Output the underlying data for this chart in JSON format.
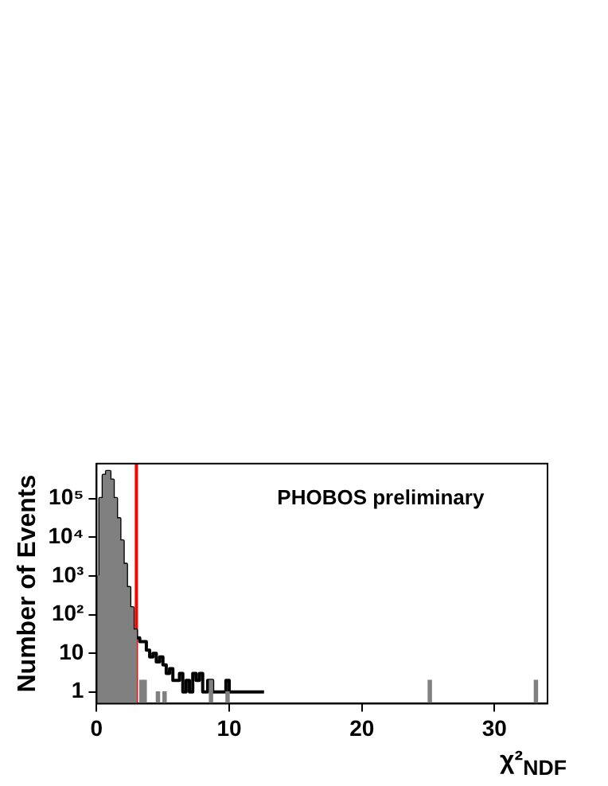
{
  "chart_data": {
    "type": "histogram",
    "ylabel": "Number of Events",
    "xlabel": "χ²$_{NDF}$",
    "annotations": [
      "PHOBOS preliminary"
    ],
    "bins": [
      0,
      0.25,
      0.5,
      0.75,
      1,
      1.25,
      1.5,
      1.75,
      2,
      2.25,
      2.5,
      2.75,
      3,
      3.25,
      3.5,
      3.75,
      4,
      4.25,
      4.5,
      4.75,
      5,
      5.25,
      5.5,
      5.75,
      6,
      6.25,
      6.5,
      6.75,
      7,
      7.25,
      7.5,
      7.75,
      8,
      8.25,
      8.5,
      8.75,
      9,
      9.25,
      9.5,
      9.75,
      10,
      10.25,
      10.5,
      10.75,
      11,
      11.25,
      11.5,
      11.75,
      12,
      12.25,
      12.5,
      12.75,
      13,
      13.25,
      13.5,
      13.75,
      14,
      14.25,
      14.5,
      14.75,
      15,
      15.25,
      15.5,
      15.75,
      16,
      16.25,
      16.5,
      16.75,
      17,
      17.25,
      17.5,
      17.75,
      18,
      18.25,
      18.5,
      18.75,
      19,
      19.25,
      19.5,
      19.75,
      20,
      20.25,
      20.5,
      20.75,
      21,
      21.25,
      21.5,
      21.75,
      22,
      22.25,
      22.5,
      22.75,
      23,
      23.25,
      23.5,
      23.75,
      24,
      24.25,
      24.5,
      24.75,
      25,
      25.25,
      25.5,
      25.75,
      26,
      26.25,
      26.5,
      26.75,
      27,
      27.25,
      27.5,
      27.75,
      28,
      28.25,
      28.5,
      28.75,
      29,
      29.25,
      29.5,
      29.75,
      30,
      30.25,
      30.5,
      30.75,
      31,
      31.25,
      31.5,
      31.75,
      32,
      32.25,
      32.5,
      32.75,
      33,
      33.25,
      33.5,
      33.75,
      34
    ],
    "series": [
      {
        "color": "#808080",
        "values": [
          1000,
          100000,
          400000,
          500000,
          300000,
          100000,
          30000,
          8000,
          2000,
          500,
          150,
          40,
          null,
          2,
          2,
          null,
          null,
          null,
          1,
          null,
          1,
          null,
          null,
          null,
          null,
          null,
          null,
          null,
          null,
          null,
          null,
          null,
          null,
          null,
          2,
          null,
          null,
          null,
          null,
          1,
          null,
          null,
          null,
          null,
          null,
          null,
          null,
          null,
          null,
          null,
          null,
          null,
          null,
          null,
          null,
          null,
          null,
          null,
          null,
          null,
          null,
          null,
          null,
          null,
          null,
          null,
          null,
          null,
          null,
          null,
          null,
          null,
          null,
          null,
          null,
          null,
          null,
          null,
          null,
          null,
          null,
          null,
          null,
          null,
          null,
          null,
          null,
          null,
          null,
          null,
          null,
          null,
          null,
          null,
          null,
          null,
          null,
          null,
          null,
          null,
          2,
          null,
          null,
          null,
          null,
          null,
          null,
          null,
          null,
          null,
          null,
          null,
          null,
          null,
          null,
          null,
          null,
          null,
          null,
          null,
          null,
          null,
          null,
          null,
          null,
          null,
          null,
          null,
          null,
          null,
          null,
          null,
          2,
          null,
          null,
          null
        ]
      },
      {
        "type": "step",
        "color": "#000000",
        "x": [
          0.125,
          0.375,
          0.625,
          0.875,
          1.125,
          1.375,
          1.625,
          1.875,
          2.125,
          2.375,
          2.625,
          2.875,
          3.125,
          3.375,
          3.625,
          3.875,
          4.125,
          4.375,
          4.625,
          4.875,
          5.125,
          5.375,
          5.625,
          5.875,
          6.125,
          6.375,
          6.625,
          6.875,
          7.125,
          7.375,
          7.625,
          7.875,
          8.125,
          8.625,
          8.875,
          9.125,
          9.625,
          9.875,
          10.125,
          10.375,
          10.625,
          11.125,
          11.375,
          11.875,
          12.125,
          12.375,
          12.625
        ],
        "values": [
          1000,
          100000,
          400000,
          500000,
          300000,
          100000,
          30000,
          8000,
          2000,
          500,
          150,
          40,
          25,
          20,
          20,
          12,
          8,
          10,
          6,
          8,
          5,
          3,
          4,
          2,
          2,
          3,
          1,
          2,
          1,
          3,
          2,
          3,
          1,
          2,
          1,
          1,
          1,
          2,
          1,
          1,
          1,
          1,
          1,
          1,
          1,
          1,
          1
        ]
      }
    ],
    "xlim": [
      0,
      34
    ],
    "xticks": [
      0,
      10,
      20,
      30
    ],
    "log": true,
    "ylim": [
      0.5,
      800000
    ],
    "yticks": [
      1,
      10,
      {
        "value": 100,
        "label": "10²"
      },
      {
        "value": 1000,
        "label": "10³"
      },
      {
        "value": 10000,
        "label": "10⁴"
      },
      {
        "value": 100000,
        "label": "10⁵"
      }
    ],
    "ref_lines": [
      {
        "axis": "x",
        "value": 3,
        "color": "#ff0000"
      }
    ],
    "grid": false,
    "legend": false
  }
}
